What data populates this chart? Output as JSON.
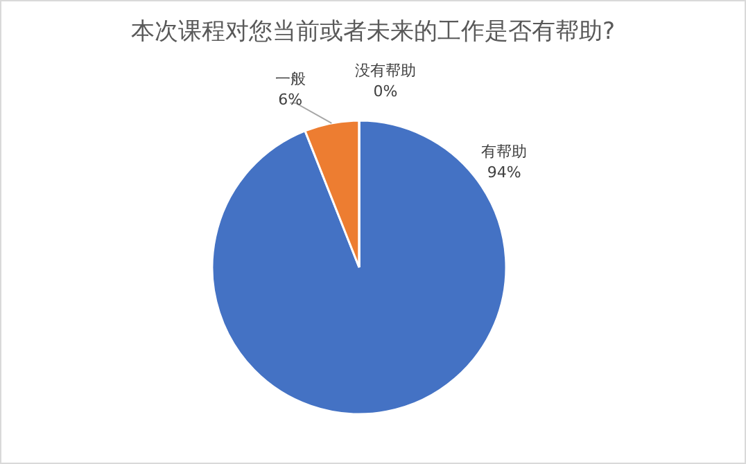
{
  "chart_data": {
    "type": "pie",
    "title": "本次课程对您当前或者未来的工作是否有帮助?",
    "categories": [
      "有帮助",
      "一般",
      "没有帮助"
    ],
    "values": [
      94,
      6,
      0
    ],
    "value_labels": [
      "94%",
      "6%",
      "0%"
    ],
    "colors": [
      "#4472c4",
      "#ed7d31",
      "#a5a5a5"
    ]
  }
}
